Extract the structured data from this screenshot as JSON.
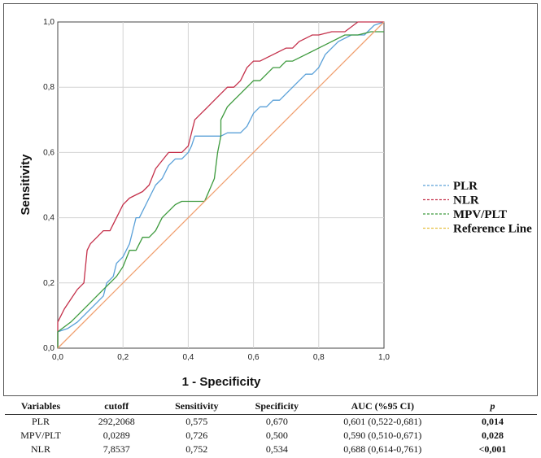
{
  "chart_data": {
    "type": "line",
    "title": "",
    "xlabel": "1 - Specificity",
    "ylabel": "Sensitivity",
    "xlim": [
      0,
      1
    ],
    "ylim": [
      0,
      1
    ],
    "x_ticks": [
      "0,0",
      "0,2",
      "0,4",
      "0,6",
      "0,8",
      "1,0"
    ],
    "y_ticks": [
      "0,0",
      "0,2",
      "0,4",
      "0,6",
      "0,8",
      "1,0"
    ],
    "grid": true,
    "legend_position": "right",
    "series": [
      {
        "name": "PLR",
        "color": "#5aa0d8",
        "x": [
          0,
          0,
          0.03,
          0.06,
          0.08,
          0.1,
          0.12,
          0.14,
          0.15,
          0.17,
          0.18,
          0.2,
          0.22,
          0.23,
          0.24,
          0.25,
          0.26,
          0.28,
          0.3,
          0.32,
          0.34,
          0.36,
          0.38,
          0.4,
          0.41,
          0.42,
          0.44,
          0.48,
          0.5,
          0.52,
          0.54,
          0.56,
          0.58,
          0.6,
          0.62,
          0.64,
          0.66,
          0.68,
          0.7,
          0.72,
          0.74,
          0.76,
          0.78,
          0.8,
          0.82,
          0.84,
          0.86,
          0.9,
          0.94,
          0.97,
          1
        ],
        "y": [
          0,
          0.05,
          0.06,
          0.08,
          0.1,
          0.12,
          0.14,
          0.16,
          0.2,
          0.22,
          0.26,
          0.28,
          0.32,
          0.36,
          0.4,
          0.4,
          0.42,
          0.46,
          0.5,
          0.52,
          0.56,
          0.58,
          0.58,
          0.6,
          0.62,
          0.65,
          0.65,
          0.65,
          0.65,
          0.66,
          0.66,
          0.66,
          0.68,
          0.72,
          0.74,
          0.74,
          0.76,
          0.76,
          0.78,
          0.8,
          0.82,
          0.84,
          0.84,
          0.86,
          0.9,
          0.92,
          0.94,
          0.96,
          0.96,
          0.99,
          1
        ]
      },
      {
        "name": "NLR",
        "color": "#c4304a",
        "x": [
          0,
          0,
          0.02,
          0.04,
          0.06,
          0.08,
          0.09,
          0.1,
          0.12,
          0.14,
          0.16,
          0.18,
          0.2,
          0.22,
          0.24,
          0.26,
          0.28,
          0.3,
          0.34,
          0.38,
          0.4,
          0.42,
          0.44,
          0.46,
          0.48,
          0.5,
          0.52,
          0.54,
          0.56,
          0.58,
          0.6,
          0.62,
          0.64,
          0.66,
          0.68,
          0.7,
          0.72,
          0.74,
          0.76,
          0.78,
          0.8,
          0.84,
          0.88,
          0.92,
          0.96,
          1
        ],
        "y": [
          0,
          0.08,
          0.12,
          0.15,
          0.18,
          0.2,
          0.3,
          0.32,
          0.34,
          0.36,
          0.36,
          0.4,
          0.44,
          0.46,
          0.47,
          0.48,
          0.5,
          0.55,
          0.6,
          0.6,
          0.62,
          0.7,
          0.72,
          0.74,
          0.76,
          0.78,
          0.8,
          0.8,
          0.82,
          0.86,
          0.88,
          0.88,
          0.89,
          0.9,
          0.91,
          0.92,
          0.92,
          0.94,
          0.95,
          0.96,
          0.96,
          0.97,
          0.97,
          1,
          1,
          1
        ]
      },
      {
        "name": "MPV/PLT",
        "color": "#3d9a3d",
        "x": [
          0,
          0,
          0.04,
          0.06,
          0.08,
          0.1,
          0.12,
          0.14,
          0.16,
          0.18,
          0.2,
          0.22,
          0.24,
          0.26,
          0.28,
          0.3,
          0.32,
          0.36,
          0.38,
          0.45,
          0.48,
          0.49,
          0.5,
          0.5,
          0.52,
          0.54,
          0.56,
          0.58,
          0.6,
          0.62,
          0.64,
          0.66,
          0.68,
          0.7,
          0.72,
          0.76,
          0.8,
          0.84,
          0.88,
          0.92,
          0.96,
          1
        ],
        "y": [
          0,
          0.05,
          0.08,
          0.1,
          0.12,
          0.14,
          0.16,
          0.18,
          0.2,
          0.22,
          0.25,
          0.3,
          0.3,
          0.34,
          0.34,
          0.36,
          0.4,
          0.44,
          0.45,
          0.45,
          0.52,
          0.6,
          0.65,
          0.7,
          0.74,
          0.76,
          0.78,
          0.8,
          0.82,
          0.82,
          0.84,
          0.86,
          0.86,
          0.88,
          0.88,
          0.9,
          0.92,
          0.94,
          0.96,
          0.96,
          0.97,
          0.97
        ]
      },
      {
        "name": "Reference Line",
        "color": "#f0a070",
        "legend_color": "#e6c040",
        "x": [
          0,
          1
        ],
        "y": [
          0,
          1
        ]
      }
    ]
  },
  "table": {
    "headers": [
      "Variables",
      "cutoff",
      "Sensitivity",
      "Specificity",
      "AUC (%95 CI)",
      "p"
    ],
    "rows": [
      [
        "PLR",
        "292,2068",
        "0,575",
        "0,670",
        "0,601 (0,522-0,681)",
        "0,014"
      ],
      [
        "MPV/PLT",
        "0,0289",
        "0,726",
        "0,500",
        "0,590 (0,510-0,671)",
        "0,028"
      ],
      [
        "NLR",
        "7,8537",
        "0,752",
        "0,534",
        "0,688 (0,614-0,761)",
        "<0,001"
      ]
    ]
  }
}
